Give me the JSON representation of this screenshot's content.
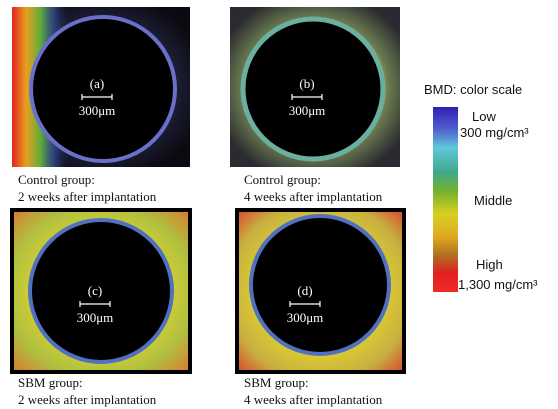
{
  "panels": [
    {
      "label": "(a)",
      "scale": "300μm",
      "caption": [
        "Control group:",
        "2 weeks after implantation"
      ]
    },
    {
      "label": "(b)",
      "scale": "300μm",
      "caption": [
        "Control group:",
        "4 weeks after implantation"
      ]
    },
    {
      "label": "(c)",
      "scale": "300μm",
      "caption": [
        "SBM group:",
        "2 weeks after implantation"
      ]
    },
    {
      "label": "(d)",
      "scale": "300μm",
      "caption": [
        "SBM group:",
        "4 weeks after implantation"
      ]
    }
  ],
  "color_scale": {
    "title": "BMD: color scale",
    "low": "Low",
    "low_value": "300 mg/cm³",
    "middle": "Middle",
    "high": "High",
    "high_value": "1,300 mg/cm³"
  }
}
